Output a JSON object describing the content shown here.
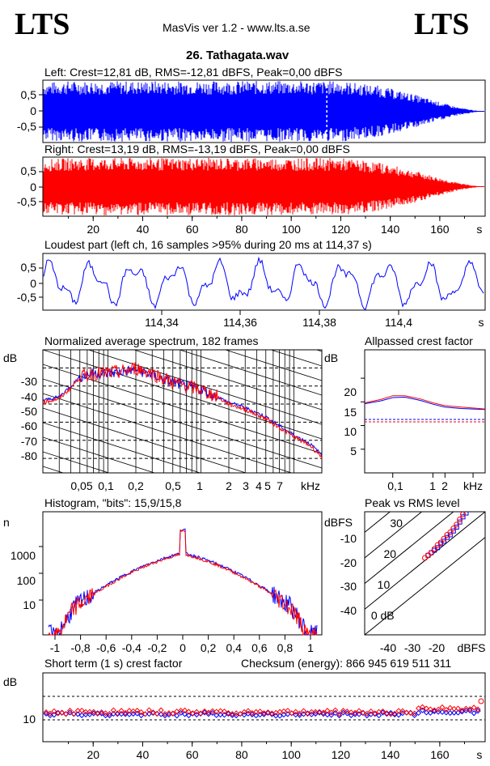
{
  "header": {
    "logo_left": "LTS",
    "logo_right": "LTS",
    "app_title": "MasVis ver 1.2 - www.lts.a.se",
    "file_title": "26. Tathagata.wav"
  },
  "colors": {
    "left": "#0000ff",
    "right": "#ff0000",
    "axis": "#000000"
  },
  "chart_data": [
    {
      "id": "left_waveform",
      "type": "area",
      "title": "Left: Crest=12,81 dB, RMS=-12,81 dBFS, Peak=0,00 dBFS",
      "ylim": [
        -1,
        1
      ],
      "yticks": [
        "0,5",
        "0",
        "-0,5"
      ],
      "xlim": [
        0,
        178
      ],
      "loudest_marker_s": 114.37,
      "envelope": {
        "x": [
          0,
          10,
          40,
          80,
          120,
          135,
          150,
          160,
          168,
          175,
          178
        ],
        "amp": [
          0.95,
          1.0,
          1.0,
          1.0,
          1.0,
          0.85,
          0.55,
          0.3,
          0.12,
          0.02,
          0.0
        ]
      }
    },
    {
      "id": "right_waveform",
      "type": "area",
      "title": "Right: Crest=13,19 dB, RMS=-13,19 dBFS, Peak=0,00 dBFS",
      "ylim": [
        -1,
        1
      ],
      "yticks": [
        "0,5",
        "0",
        "-0,5"
      ],
      "xlim": [
        0,
        178
      ],
      "xticks": [
        "20",
        "40",
        "60",
        "80",
        "100",
        "120",
        "140",
        "160",
        "s"
      ],
      "envelope": {
        "x": [
          0,
          10,
          40,
          80,
          120,
          135,
          150,
          160,
          168,
          175,
          178
        ],
        "amp": [
          0.95,
          1.0,
          1.0,
          1.0,
          1.0,
          0.85,
          0.55,
          0.3,
          0.12,
          0.02,
          0.0
        ]
      }
    },
    {
      "id": "loudest_part",
      "type": "line",
      "title": "Loudest part (left  ch, 16 samples >95% during 20 ms at 114,37 s)",
      "ylim": [
        -1,
        1
      ],
      "yticks": [
        "0,5",
        "0",
        "-0,5"
      ],
      "xlim": [
        114.326,
        114.406
      ],
      "xticks": [
        "114,34",
        "114,36",
        "114,38",
        "114,4",
        "s"
      ]
    },
    {
      "id": "avg_spectrum",
      "type": "line",
      "title": "Normalized average spectrum, 182 frames",
      "ylabel": "dB",
      "yticks": [
        "-30",
        "-40",
        "-50",
        "-60",
        "-70",
        "-80"
      ],
      "xticks": [
        "0,05",
        "0,1",
        "0,2",
        "0,5",
        "1",
        "2",
        "3",
        "4",
        "5",
        "7",
        "kHz"
      ],
      "ylim": [
        -88,
        -20
      ],
      "series": [
        {
          "x": [
            0.02,
            0.03,
            0.04,
            0.05,
            0.07,
            0.1,
            0.15,
            0.2,
            0.3,
            0.5,
            0.7,
            1,
            1.5,
            2,
            3,
            5,
            7,
            10,
            15,
            20
          ],
          "values": [
            -48,
            -46,
            -40,
            -35,
            -33,
            -33,
            -32,
            -31,
            -34,
            -38,
            -40,
            -42,
            -46,
            -49,
            -52,
            -57,
            -62,
            -67,
            -72,
            -78
          ]
        },
        {
          "x": [
            0.02,
            0.03,
            0.04,
            0.05,
            0.07,
            0.1,
            0.15,
            0.2,
            0.3,
            0.5,
            0.7,
            1,
            1.5,
            2,
            3,
            5,
            7,
            10,
            15,
            20
          ],
          "values": [
            -49,
            -47,
            -41,
            -35,
            -33,
            -33,
            -32,
            -30,
            -33,
            -38,
            -40,
            -42,
            -46,
            -50,
            -53,
            -58,
            -63,
            -68,
            -73,
            -79
          ]
        }
      ]
    },
    {
      "id": "allpassed_crest",
      "type": "line",
      "title": "Allpassed crest factor",
      "ylabel": "dB",
      "yticks": [
        "20",
        "15",
        "10",
        "5"
      ],
      "xticks": [
        "0,1",
        "1",
        "2",
        "kHz"
      ],
      "ylim": [
        0,
        26
      ],
      "reference_db": 13.2,
      "series": [
        {
          "x": [
            0.02,
            0.05,
            0.1,
            0.2,
            0.5,
            1,
            2,
            5,
            10,
            20
          ],
          "values": [
            14.6,
            15.2,
            15.9,
            16.0,
            15.3,
            14.5,
            13.9,
            13.6,
            13.5,
            13.4
          ]
        },
        {
          "x": [
            0.02,
            0.05,
            0.1,
            0.2,
            0.5,
            1,
            2,
            5,
            10,
            20
          ],
          "values": [
            14.8,
            15.5,
            16.3,
            16.3,
            15.6,
            14.8,
            14.2,
            13.9,
            13.7,
            13.5
          ]
        }
      ]
    },
    {
      "id": "histogram",
      "type": "line",
      "title": "Histogram, \"bits\": 15,9/15,8",
      "ylabel": "n",
      "yticks": [
        "1000",
        "100",
        "10"
      ],
      "xticks": [
        "-1",
        "-0,8",
        "-0,6",
        "-0,4",
        "-0,2",
        "0",
        "0,2",
        "0,4",
        "0,6",
        "0,8",
        "1"
      ],
      "xlim": [
        -1,
        1
      ]
    },
    {
      "id": "peak_vs_rms",
      "type": "scatter",
      "title": "Peak vs RMS level",
      "ylabel": "dBFS",
      "xlabel": "dBFS",
      "yticks": [
        "-10",
        "-20",
        "-30",
        "-40"
      ],
      "xticks": [
        "-40",
        "-30",
        "-20"
      ],
      "crest_lines": [
        "40",
        "30",
        "20",
        "10",
        "0 dB"
      ],
      "xlim": [
        -50,
        -12
      ],
      "ylim": [
        -50,
        -2
      ],
      "series": [
        {
          "x": [
            -30,
            -29,
            -28,
            -27,
            -26,
            -25,
            -24,
            -23,
            -22,
            -21,
            -20,
            -19,
            -18
          ],
          "values": [
            -19,
            -18,
            -17,
            -16,
            -14.5,
            -13.5,
            -12,
            -11,
            -9.5,
            -8,
            -6,
            -4,
            -2.5
          ]
        },
        {
          "x": [
            -31,
            -30,
            -29,
            -28,
            -27,
            -26,
            -25,
            -24,
            -23,
            -22,
            -21,
            -20,
            -19
          ],
          "values": [
            -20,
            -19,
            -18,
            -16.5,
            -15,
            -14,
            -12.5,
            -11,
            -10,
            -8.5,
            -7,
            -5,
            -3
          ]
        }
      ]
    },
    {
      "id": "short_term_crest",
      "type": "scatter",
      "title": "Short term (1 s) crest factor",
      "checksum": "Checksum (energy):   866 945 619 511 311",
      "ylabel": "dB",
      "yticks": [
        "10"
      ],
      "xticks": [
        "20",
        "40",
        "60",
        "80",
        "100",
        "120",
        "140",
        "160",
        "s"
      ],
      "xlim": [
        0,
        178
      ],
      "ylim": [
        0,
        20
      ]
    }
  ]
}
